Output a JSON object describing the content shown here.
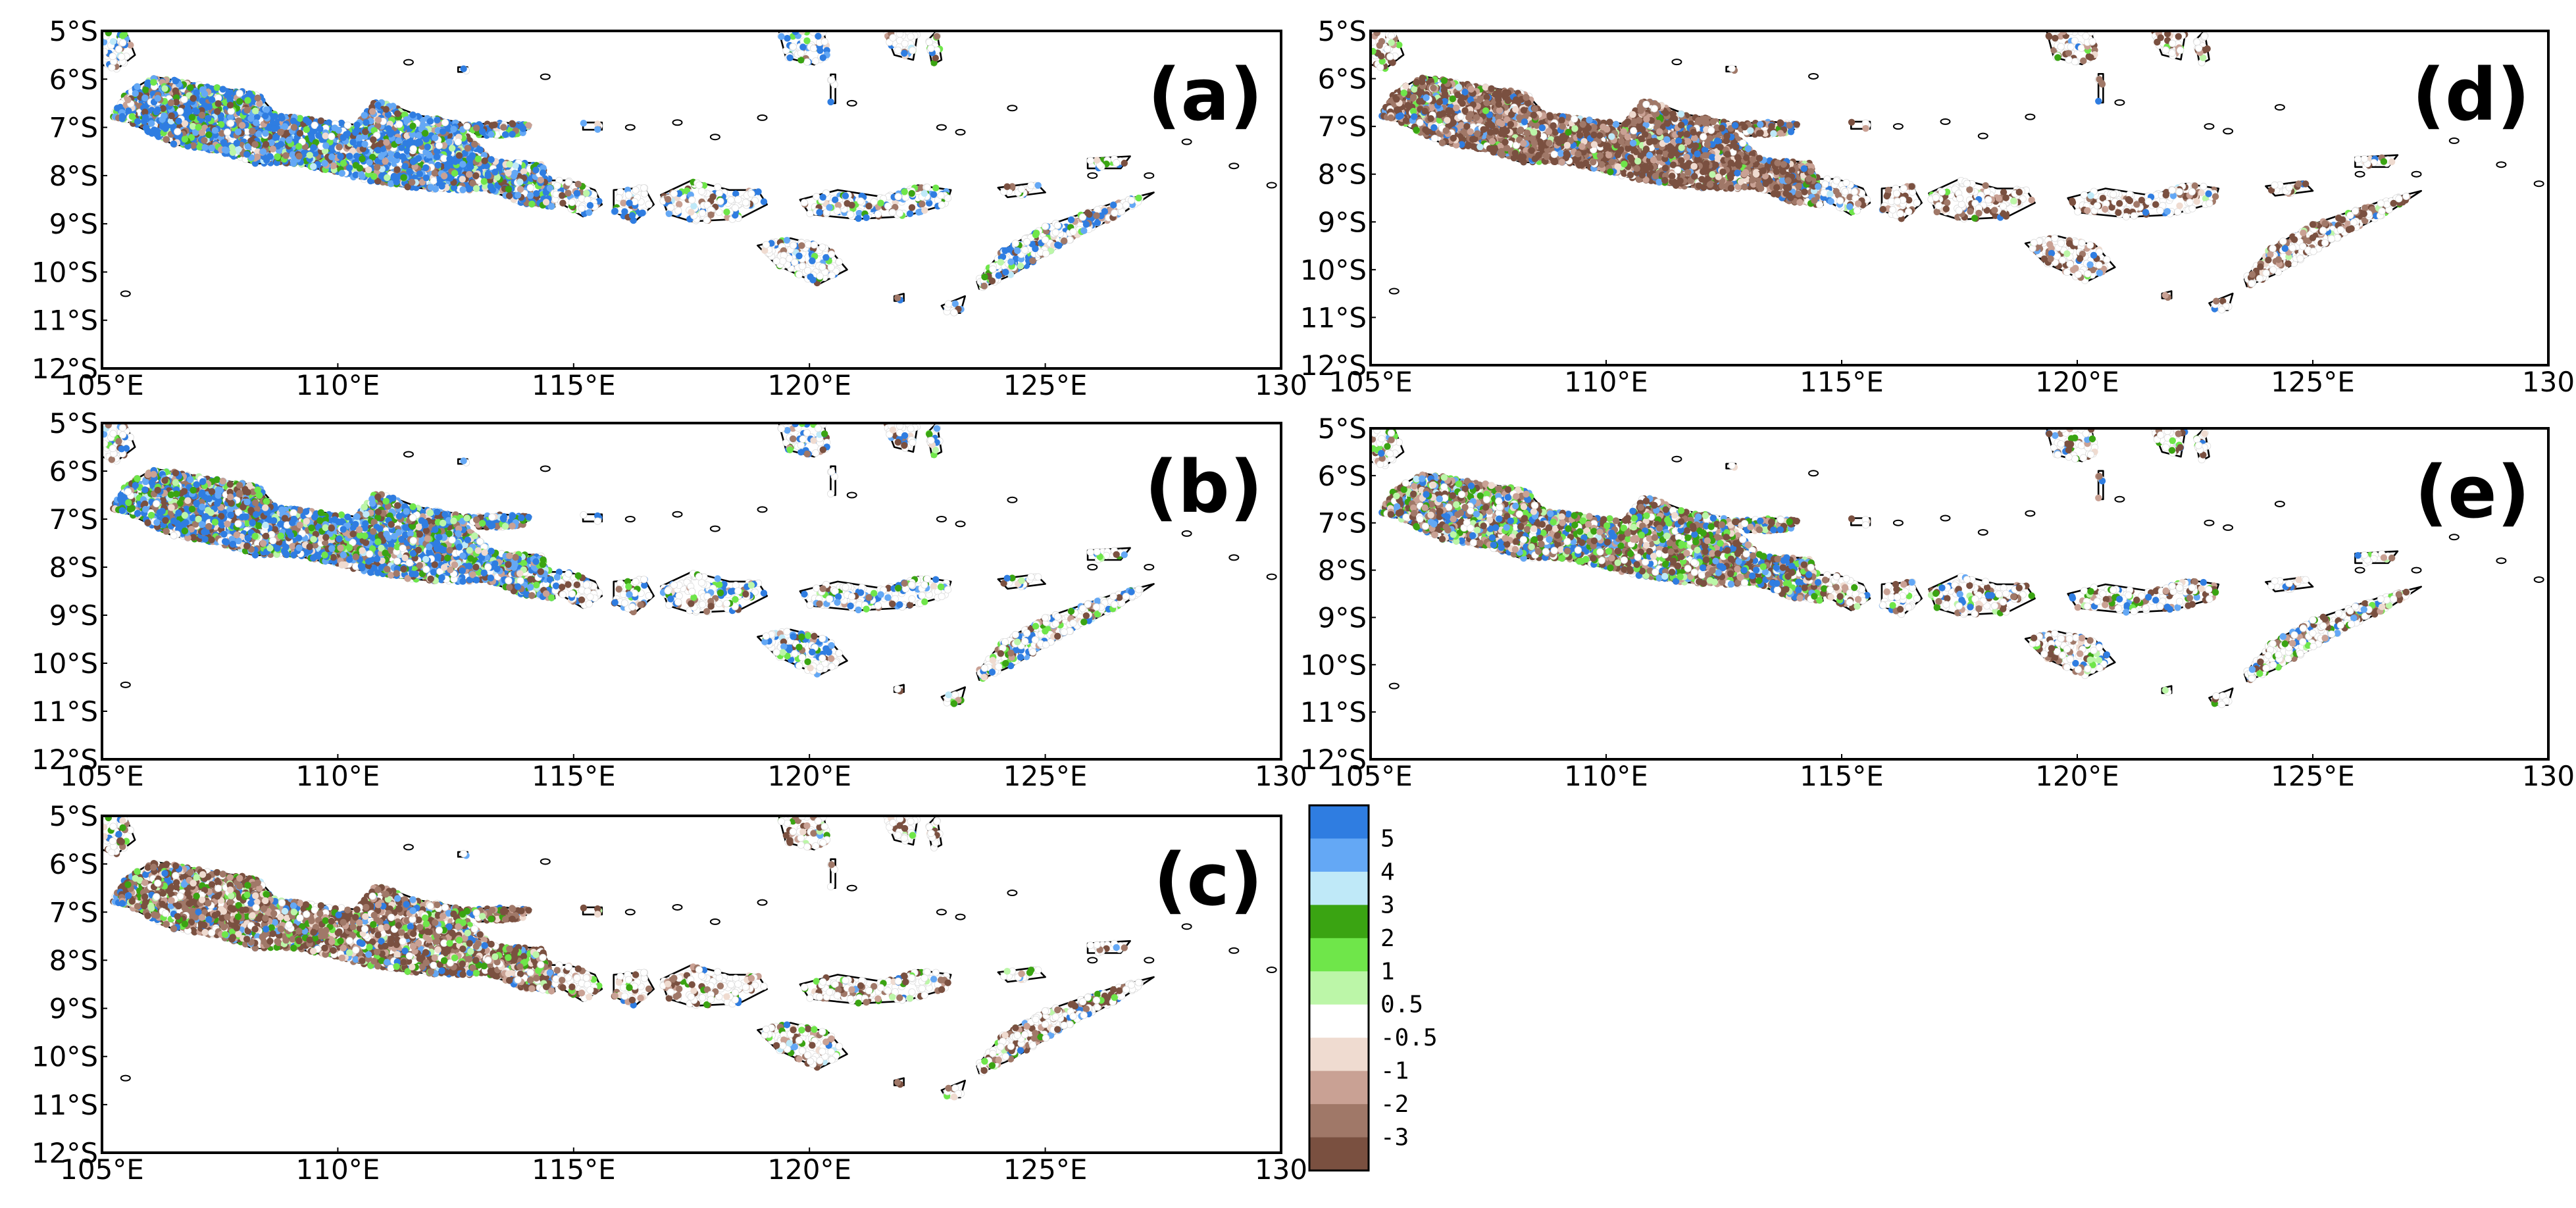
{
  "figure": {
    "panels": [
      {
        "id": "a",
        "label": "(a)",
        "theme": "wet"
      },
      {
        "id": "b",
        "label": "(b)",
        "theme": "mixed"
      },
      {
        "id": "c",
        "label": "(c)",
        "theme": "dry"
      },
      {
        "id": "d",
        "label": "(d)",
        "theme": "very-dry"
      },
      {
        "id": "e",
        "label": "(e)",
        "theme": "dry-mixed"
      }
    ],
    "axes": {
      "lon_ticks": [
        "105°E",
        "110°E",
        "115°E",
        "120°E",
        "125°E",
        "130"
      ],
      "lat_ticks": [
        "5°S",
        "6°S",
        "7°S",
        "8°S",
        "9°S",
        "10°S",
        "11°S",
        "12°S"
      ],
      "lon_range": [
        105,
        130
      ],
      "lat_range": [
        -12,
        -5
      ]
    },
    "colorbar": {
      "labels": [
        "5",
        "4",
        "3",
        "2",
        "1",
        "0.5",
        "-0.5",
        "-1",
        "-2",
        "-3"
      ],
      "colors": [
        "#2f7de1",
        "#64a8f5",
        "#bfe9f8",
        "#3aa412",
        "#6fe64a",
        "#bcf6a8",
        "#ffffff",
        "#efdbd0",
        "#c9a194",
        "#a07868",
        "#7a5040"
      ]
    }
  }
}
